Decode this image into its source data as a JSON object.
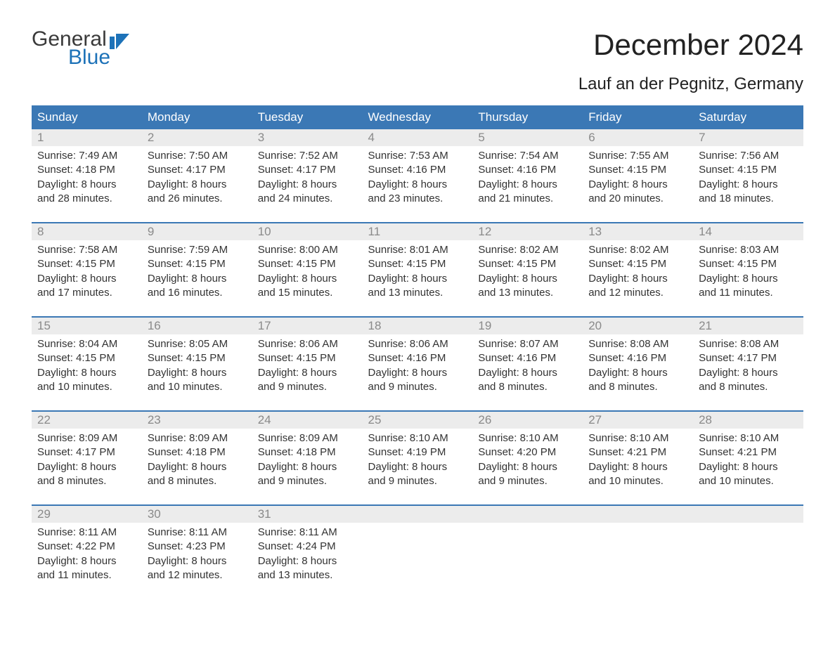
{
  "brand": {
    "word1": "General",
    "word2": "Blue",
    "logo_color": "#1d72b8"
  },
  "title": "December 2024",
  "location": "Lauf an der Pegnitz, Germany",
  "colors": {
    "header_bg": "#3b78b5",
    "header_text": "#ffffff",
    "daynum_bg": "#ececec",
    "daynum_text": "#8a8a8a",
    "body_text": "#333333",
    "separator": "#3b78b5",
    "page_bg": "#ffffff"
  },
  "typography": {
    "title_fontsize": 42,
    "location_fontsize": 24,
    "header_fontsize": 17,
    "daynum_fontsize": 17,
    "body_fontsize": 15
  },
  "day_headers": [
    "Sunday",
    "Monday",
    "Tuesday",
    "Wednesday",
    "Thursday",
    "Friday",
    "Saturday"
  ],
  "weeks": [
    [
      {
        "n": "1",
        "sr": "Sunrise: 7:49 AM",
        "ss": "Sunset: 4:18 PM",
        "d1": "Daylight: 8 hours",
        "d2": "and 28 minutes."
      },
      {
        "n": "2",
        "sr": "Sunrise: 7:50 AM",
        "ss": "Sunset: 4:17 PM",
        "d1": "Daylight: 8 hours",
        "d2": "and 26 minutes."
      },
      {
        "n": "3",
        "sr": "Sunrise: 7:52 AM",
        "ss": "Sunset: 4:17 PM",
        "d1": "Daylight: 8 hours",
        "d2": "and 24 minutes."
      },
      {
        "n": "4",
        "sr": "Sunrise: 7:53 AM",
        "ss": "Sunset: 4:16 PM",
        "d1": "Daylight: 8 hours",
        "d2": "and 23 minutes."
      },
      {
        "n": "5",
        "sr": "Sunrise: 7:54 AM",
        "ss": "Sunset: 4:16 PM",
        "d1": "Daylight: 8 hours",
        "d2": "and 21 minutes."
      },
      {
        "n": "6",
        "sr": "Sunrise: 7:55 AM",
        "ss": "Sunset: 4:15 PM",
        "d1": "Daylight: 8 hours",
        "d2": "and 20 minutes."
      },
      {
        "n": "7",
        "sr": "Sunrise: 7:56 AM",
        "ss": "Sunset: 4:15 PM",
        "d1": "Daylight: 8 hours",
        "d2": "and 18 minutes."
      }
    ],
    [
      {
        "n": "8",
        "sr": "Sunrise: 7:58 AM",
        "ss": "Sunset: 4:15 PM",
        "d1": "Daylight: 8 hours",
        "d2": "and 17 minutes."
      },
      {
        "n": "9",
        "sr": "Sunrise: 7:59 AM",
        "ss": "Sunset: 4:15 PM",
        "d1": "Daylight: 8 hours",
        "d2": "and 16 minutes."
      },
      {
        "n": "10",
        "sr": "Sunrise: 8:00 AM",
        "ss": "Sunset: 4:15 PM",
        "d1": "Daylight: 8 hours",
        "d2": "and 15 minutes."
      },
      {
        "n": "11",
        "sr": "Sunrise: 8:01 AM",
        "ss": "Sunset: 4:15 PM",
        "d1": "Daylight: 8 hours",
        "d2": "and 13 minutes."
      },
      {
        "n": "12",
        "sr": "Sunrise: 8:02 AM",
        "ss": "Sunset: 4:15 PM",
        "d1": "Daylight: 8 hours",
        "d2": "and 13 minutes."
      },
      {
        "n": "13",
        "sr": "Sunrise: 8:02 AM",
        "ss": "Sunset: 4:15 PM",
        "d1": "Daylight: 8 hours",
        "d2": "and 12 minutes."
      },
      {
        "n": "14",
        "sr": "Sunrise: 8:03 AM",
        "ss": "Sunset: 4:15 PM",
        "d1": "Daylight: 8 hours",
        "d2": "and 11 minutes."
      }
    ],
    [
      {
        "n": "15",
        "sr": "Sunrise: 8:04 AM",
        "ss": "Sunset: 4:15 PM",
        "d1": "Daylight: 8 hours",
        "d2": "and 10 minutes."
      },
      {
        "n": "16",
        "sr": "Sunrise: 8:05 AM",
        "ss": "Sunset: 4:15 PM",
        "d1": "Daylight: 8 hours",
        "d2": "and 10 minutes."
      },
      {
        "n": "17",
        "sr": "Sunrise: 8:06 AM",
        "ss": "Sunset: 4:15 PM",
        "d1": "Daylight: 8 hours",
        "d2": "and 9 minutes."
      },
      {
        "n": "18",
        "sr": "Sunrise: 8:06 AM",
        "ss": "Sunset: 4:16 PM",
        "d1": "Daylight: 8 hours",
        "d2": "and 9 minutes."
      },
      {
        "n": "19",
        "sr": "Sunrise: 8:07 AM",
        "ss": "Sunset: 4:16 PM",
        "d1": "Daylight: 8 hours",
        "d2": "and 8 minutes."
      },
      {
        "n": "20",
        "sr": "Sunrise: 8:08 AM",
        "ss": "Sunset: 4:16 PM",
        "d1": "Daylight: 8 hours",
        "d2": "and 8 minutes."
      },
      {
        "n": "21",
        "sr": "Sunrise: 8:08 AM",
        "ss": "Sunset: 4:17 PM",
        "d1": "Daylight: 8 hours",
        "d2": "and 8 minutes."
      }
    ],
    [
      {
        "n": "22",
        "sr": "Sunrise: 8:09 AM",
        "ss": "Sunset: 4:17 PM",
        "d1": "Daylight: 8 hours",
        "d2": "and 8 minutes."
      },
      {
        "n": "23",
        "sr": "Sunrise: 8:09 AM",
        "ss": "Sunset: 4:18 PM",
        "d1": "Daylight: 8 hours",
        "d2": "and 8 minutes."
      },
      {
        "n": "24",
        "sr": "Sunrise: 8:09 AM",
        "ss": "Sunset: 4:18 PM",
        "d1": "Daylight: 8 hours",
        "d2": "and 9 minutes."
      },
      {
        "n": "25",
        "sr": "Sunrise: 8:10 AM",
        "ss": "Sunset: 4:19 PM",
        "d1": "Daylight: 8 hours",
        "d2": "and 9 minutes."
      },
      {
        "n": "26",
        "sr": "Sunrise: 8:10 AM",
        "ss": "Sunset: 4:20 PM",
        "d1": "Daylight: 8 hours",
        "d2": "and 9 minutes."
      },
      {
        "n": "27",
        "sr": "Sunrise: 8:10 AM",
        "ss": "Sunset: 4:21 PM",
        "d1": "Daylight: 8 hours",
        "d2": "and 10 minutes."
      },
      {
        "n": "28",
        "sr": "Sunrise: 8:10 AM",
        "ss": "Sunset: 4:21 PM",
        "d1": "Daylight: 8 hours",
        "d2": "and 10 minutes."
      }
    ],
    [
      {
        "n": "29",
        "sr": "Sunrise: 8:11 AM",
        "ss": "Sunset: 4:22 PM",
        "d1": "Daylight: 8 hours",
        "d2": "and 11 minutes."
      },
      {
        "n": "30",
        "sr": "Sunrise: 8:11 AM",
        "ss": "Sunset: 4:23 PM",
        "d1": "Daylight: 8 hours",
        "d2": "and 12 minutes."
      },
      {
        "n": "31",
        "sr": "Sunrise: 8:11 AM",
        "ss": "Sunset: 4:24 PM",
        "d1": "Daylight: 8 hours",
        "d2": "and 13 minutes."
      },
      null,
      null,
      null,
      null
    ]
  ]
}
